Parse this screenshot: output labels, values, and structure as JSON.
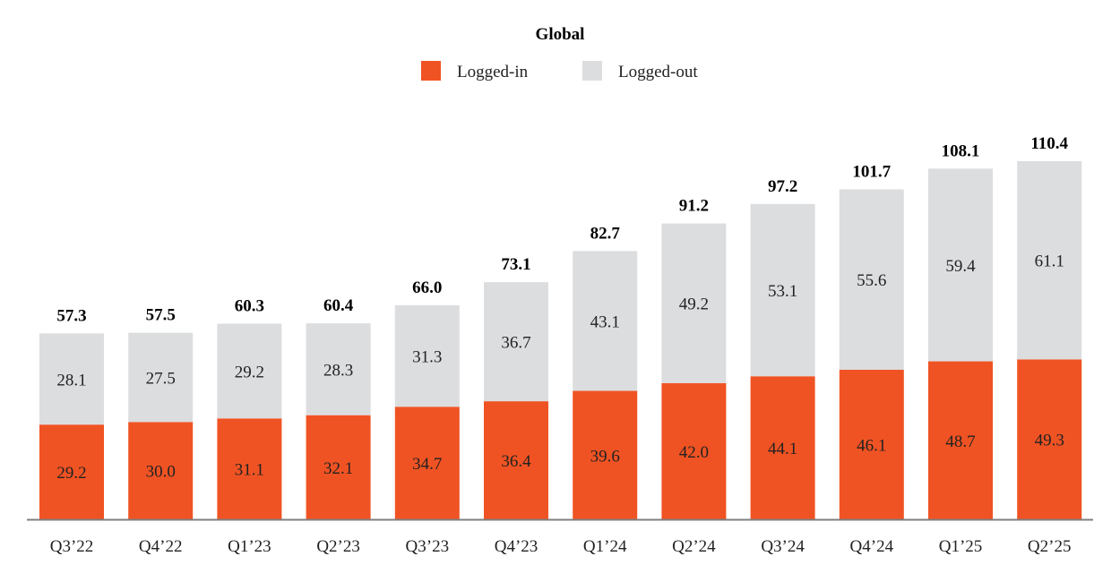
{
  "chart_data": {
    "type": "bar",
    "stacked": true,
    "title": "Global",
    "categories": [
      "Q3’22",
      "Q4’22",
      "Q1’23",
      "Q2’23",
      "Q3’23",
      "Q4’23",
      "Q1’24",
      "Q2’24",
      "Q3’24",
      "Q4’24",
      "Q1’25",
      "Q2’25"
    ],
    "series": [
      {
        "name": "Logged-in",
        "color": "#f05323",
        "values": [
          29.2,
          30.0,
          31.1,
          32.1,
          34.7,
          36.4,
          39.6,
          42.0,
          44.1,
          46.1,
          48.7,
          49.3
        ]
      },
      {
        "name": "Logged-out",
        "color": "#dcdddf",
        "values": [
          28.1,
          27.5,
          29.2,
          28.3,
          31.3,
          36.7,
          43.1,
          49.2,
          53.1,
          55.6,
          59.4,
          61.1
        ]
      }
    ],
    "totals": [
      "57.3",
      "57.5",
      "60.3",
      "60.4",
      "66.0",
      "73.1",
      "82.7",
      "91.2",
      "97.2",
      "101.7",
      "108.1",
      "110.4"
    ],
    "in_labels": [
      "29.2",
      "30.0",
      "31.1",
      "32.1",
      "34.7",
      "36.4",
      "39.6",
      "42.0",
      "44.1",
      "46.1",
      "48.7",
      "49.3"
    ],
    "out_labels": [
      "28.1",
      "27.5",
      "29.2",
      "28.3",
      "31.3",
      "36.7",
      "43.1",
      "49.2",
      "53.1",
      "55.6",
      "59.4",
      "61.1"
    ],
    "legend": [
      "Logged-in",
      "Logged-out"
    ],
    "legend_position": "top-center",
    "xlabel": "",
    "ylabel": "",
    "ylim": [
      0,
      110.4
    ],
    "grid": false
  }
}
